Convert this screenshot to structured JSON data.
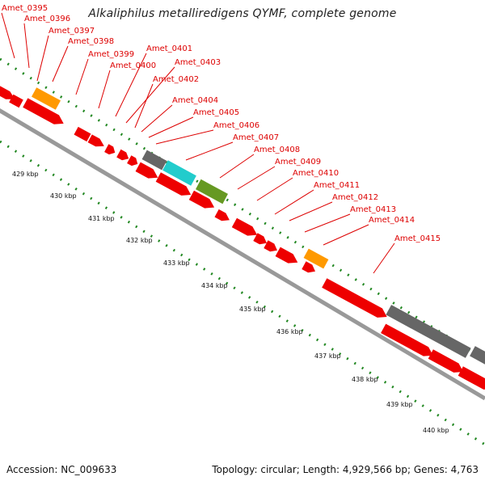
{
  "title": "Alkaliphilus metalliredigens QYMF, complete genome",
  "footer": {
    "accession": "Accession: NC_009633",
    "topology": "Topology: circular; Length: 4,929,566 bp; Genes: 4,763"
  },
  "colors": {
    "cds": "#ee0000",
    "orange": "#ff9900",
    "gray": "#666666",
    "cyan": "#22cccc",
    "olive": "#669922",
    "backbone": "#999999",
    "ticks": "#228822",
    "label": "#dd0000"
  },
  "gene_labels": [
    "Amet_0395",
    "Amet_0396",
    "Amet_0397",
    "Amet_0398",
    "Amet_0399",
    "Amet_0400",
    "Amet_0401",
    "Amet_0403",
    "Amet_0402",
    "Amet_0404",
    "Amet_0405",
    "Amet_0406",
    "Amet_0407",
    "Amet_0408",
    "Amet_0409",
    "Amet_0410",
    "Amet_0411",
    "Amet_0412",
    "Amet_0413",
    "Amet_0414",
    "Amet_0415"
  ],
  "kbp_labels": [
    "429 kbp",
    "430 kbp",
    "431 kbp",
    "432 kbp",
    "433 kbp",
    "434 kbp",
    "435 kbp",
    "436 kbp",
    "437 kbp",
    "438 kbp",
    "439 kbp",
    "440 kbp"
  ]
}
